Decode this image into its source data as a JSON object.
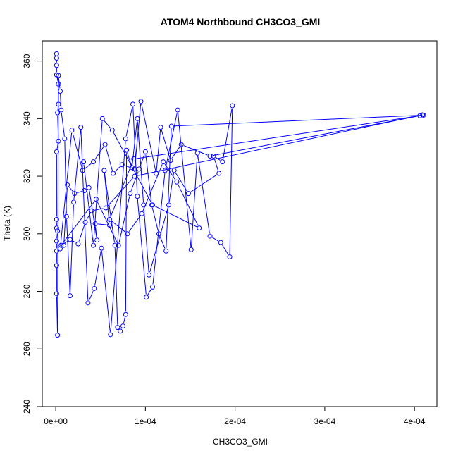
{
  "chart_data": {
    "type": "line",
    "title": "ATOM4 Northbound CH3CO3_GMI",
    "xlabel": "CH3CO3_GMI",
    "ylabel": "Theta (K)",
    "xlim": [
      -1.5e-05,
      0.000425
    ],
    "ylim": [
      240,
      367
    ],
    "x_ticks": [
      0,
      0.0001,
      0.0002,
      0.0003,
      0.0004
    ],
    "x_tick_labels": [
      "0e+00",
      "1e-04",
      "2e-04",
      "3e-04",
      "4e-04"
    ],
    "y_ticks": [
      240,
      260,
      280,
      300,
      320,
      340,
      360
    ],
    "y_tick_labels": [
      "240",
      "260",
      "280",
      "300",
      "320",
      "340",
      "360"
    ],
    "grid": false,
    "legend": "none",
    "colors": {
      "series": "#0000ff",
      "axis": "#000000"
    },
    "series": [
      {
        "marker": "open-circle",
        "points": [
          [
            1e-06,
            362.5
          ],
          [
            1e-06,
            361
          ],
          [
            1e-06,
            358.5
          ],
          [
            1e-06,
            355.2
          ],
          [
            3e-06,
            352
          ],
          [
            3e-06,
            345
          ],
          [
            2e-06,
            342
          ],
          [
            3e-06,
            332.2
          ],
          [
            1e-06,
            328.5
          ],
          [
            1e-06,
            305
          ],
          [
            1e-06,
            302
          ],
          [
            2e-06,
            301
          ],
          [
            1e-06,
            297.5
          ],
          [
            1e-06,
            294
          ],
          [
            1e-06,
            289
          ],
          [
            1e-06,
            279.2
          ],
          [
            2e-06,
            264.8
          ],
          [
            3e-06,
            355
          ],
          [
            5e-06,
            349.5
          ],
          [
            6e-06,
            343
          ],
          [
            1e-05,
            333
          ],
          [
            1.2e-05,
            306
          ],
          [
            1.6e-05,
            278.5
          ],
          [
            2e-05,
            311
          ],
          [
            2.8e-05,
            337
          ],
          [
            3.6e-05,
            276
          ],
          [
            4.3e-05,
            281
          ],
          [
            5.1e-05,
            295
          ],
          [
            6.1e-05,
            265
          ],
          [
            7.8e-05,
            333
          ],
          [
            8.6e-05,
            345
          ],
          [
            9.1e-05,
            313
          ],
          [
            0.000101,
            278
          ],
          [
            0.000108,
            281.5
          ],
          [
            0.000122,
            322
          ],
          [
            0.000136,
            343
          ],
          [
            0.000151,
            294.5
          ],
          [
            0.000158,
            328
          ],
          [
            0.000172,
            299.2
          ],
          [
            0.000184,
            297
          ],
          [
            0.000194,
            292
          ],
          [
            0.000197,
            344.5
          ],
          [
            0.000186,
            325
          ],
          [
            0.000176,
            327
          ],
          [
            0.000182,
            321
          ],
          [
            0.000148,
            314
          ],
          [
            0.000132,
            322
          ],
          [
            0.000126,
            310
          ],
          [
            0.000104,
            285.7
          ],
          [
            9.8e-05,
            310
          ],
          [
            9.1e-05,
            340
          ],
          [
            8.5e-05,
            323
          ],
          [
            7.9e-05,
            329
          ],
          [
            7.8e-05,
            272
          ],
          [
            7.5e-05,
            268
          ],
          [
            7.2e-05,
            266.2
          ],
          [
            6.9e-05,
            267.5
          ],
          [
            6.6e-05,
            296
          ],
          [
            5.4e-05,
            322
          ],
          [
            6e-05,
            303
          ],
          [
            4.4e-05,
            303.5
          ],
          [
            4.6e-05,
            297.8
          ],
          [
            3.7e-05,
            316
          ],
          [
            3.2e-05,
            315
          ],
          [
            2.1e-05,
            314
          ],
          [
            1.3e-05,
            317
          ],
          [
            9e-06,
            296
          ],
          [
            5e-06,
            294.8
          ],
          [
            1.8e-05,
            336
          ],
          [
            3e-05,
            322
          ],
          [
            4.2e-05,
            325
          ],
          [
            5.5e-05,
            331
          ],
          [
            6.4e-05,
            321
          ],
          [
            7.4e-05,
            324
          ],
          [
            8.8e-05,
            322.5
          ],
          [
            9.5e-05,
            346
          ],
          [
            0.000112,
            321
          ],
          [
            0.000117,
            337
          ],
          [
            0.000128,
            325.5
          ],
          [
            0.00014,
            331
          ],
          [
            0.000172,
            327
          ],
          [
            0.000406,
            341
          ],
          [
            0.000409,
            341.3
          ],
          [
            8.8e-05,
            320
          ],
          [
            5.6e-05,
            309
          ],
          [
            4e-05,
            308
          ],
          [
            3.3e-05,
            304
          ],
          [
            2.5e-05,
            296.5
          ],
          [
            1.6e-05,
            298
          ],
          [
            6e-06,
            296
          ],
          [
            4.5e-05,
            312
          ],
          [
            7e-05,
            296
          ],
          [
            8.3e-05,
            314
          ],
          [
            9.3e-05,
            322.5
          ],
          [
            0.0001,
            328.5
          ],
          [
            0.000107,
            310
          ],
          [
            0.000115,
            300
          ],
          [
            0.000123,
            294
          ],
          [
            0.000129,
            337.4
          ],
          [
            0.00041,
            341.2
          ],
          [
            8.7e-05,
            326
          ],
          [
            6e-05,
            305
          ],
          [
            8e-05,
            300
          ],
          [
            9.6e-05,
            307
          ],
          [
            0.00012,
            325
          ],
          [
            0.000135,
            318
          ],
          [
            0.00016,
            302
          ],
          [
            0.000108,
            310
          ],
          [
            6.3e-05,
            336
          ],
          [
            5.2e-05,
            340
          ],
          [
            4.2e-05,
            296
          ],
          [
            3.1e-05,
            325
          ]
        ]
      }
    ]
  }
}
